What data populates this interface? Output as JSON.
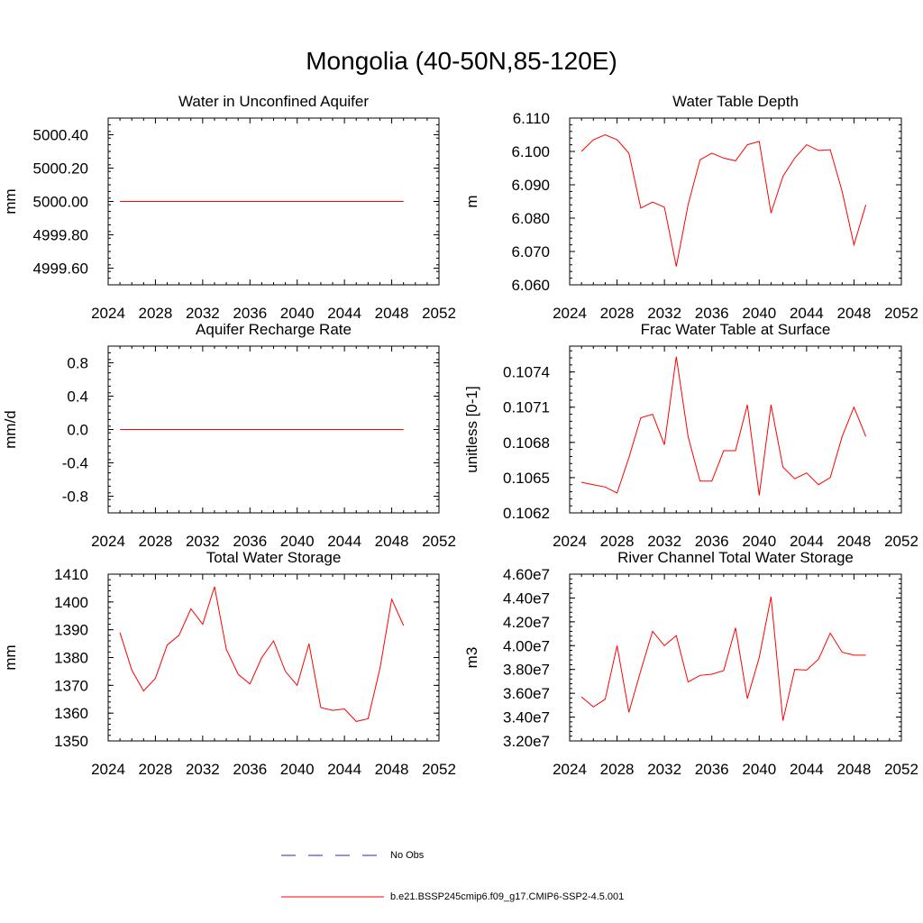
{
  "figure": {
    "title": "Mongolia (40-50N,85-120E)"
  },
  "legend": {
    "entries": [
      {
        "label": "No Obs",
        "color": "#2a2aa8",
        "style": "dashed"
      },
      {
        "label": "b.e21.BSSP245cmip6.f09_g17.CMIP6-SSP2-4.5.001",
        "color": "#ff0000",
        "style": "solid"
      }
    ]
  },
  "chart_data": [
    {
      "type": "line",
      "title": "Water in Unconfined Aquifer",
      "ylabel": "mm",
      "xlim": [
        2024,
        2052
      ],
      "xticks": [
        2024,
        2028,
        2032,
        2036,
        2040,
        2044,
        2048,
        2052
      ],
      "ylim": [
        4999.5,
        5000.5
      ],
      "yticks": [
        4999.6,
        4999.8,
        5000.0,
        5000.2,
        5000.4
      ],
      "ytick_labels": [
        "4999.60",
        "4999.80",
        "5000.00",
        "5000.20",
        "5000.40"
      ],
      "x": [
        2025,
        2026,
        2027,
        2028,
        2029,
        2030,
        2031,
        2032,
        2033,
        2034,
        2035,
        2036,
        2037,
        2038,
        2039,
        2040,
        2041,
        2042,
        2043,
        2044,
        2045,
        2046,
        2047,
        2048,
        2049
      ],
      "series": [
        {
          "color": "#ff0000",
          "values": [
            5000,
            5000,
            5000,
            5000,
            5000,
            5000,
            5000,
            5000,
            5000,
            5000,
            5000,
            5000,
            5000,
            5000,
            5000,
            5000,
            5000,
            5000,
            5000,
            5000,
            5000,
            5000,
            5000,
            5000,
            5000
          ]
        }
      ]
    },
    {
      "type": "line",
      "title": "Water Table Depth",
      "ylabel": "m",
      "xlim": [
        2024,
        2052
      ],
      "xticks": [
        2024,
        2028,
        2032,
        2036,
        2040,
        2044,
        2048,
        2052
      ],
      "ylim": [
        6.06,
        6.11
      ],
      "yticks": [
        6.06,
        6.07,
        6.08,
        6.09,
        6.1,
        6.11
      ],
      "ytick_labels": [
        "6.060",
        "6.070",
        "6.080",
        "6.090",
        "6.100",
        "6.110"
      ],
      "x": [
        2025,
        2026,
        2027,
        2028,
        2029,
        2030,
        2031,
        2032,
        2033,
        2034,
        2035,
        2036,
        2037,
        2038,
        2039,
        2040,
        2041,
        2042,
        2043,
        2044,
        2045,
        2046,
        2047,
        2048,
        2049
      ],
      "series": [
        {
          "color": "#ff0000",
          "values": [
            6.1,
            6.1035,
            6.105,
            6.1035,
            6.0995,
            6.083,
            6.0848,
            6.0833,
            6.0655,
            6.084,
            6.0975,
            6.0995,
            6.098,
            6.0972,
            6.102,
            6.103,
            6.0815,
            6.0925,
            6.098,
            6.102,
            6.1003,
            6.1005,
            6.088,
            6.072,
            6.084
          ]
        }
      ]
    },
    {
      "type": "line",
      "title": "Aquifer Recharge Rate",
      "ylabel": "mm/d",
      "xlim": [
        2024,
        2052
      ],
      "xticks": [
        2024,
        2028,
        2032,
        2036,
        2040,
        2044,
        2048,
        2052
      ],
      "ylim": [
        -1.0,
        1.0
      ],
      "yticks": [
        -0.8,
        -0.4,
        0.0,
        0.4,
        0.8
      ],
      "ytick_labels": [
        "-0.8",
        "-0.4",
        "0.0",
        "0.4",
        "0.8"
      ],
      "x": [
        2025,
        2026,
        2027,
        2028,
        2029,
        2030,
        2031,
        2032,
        2033,
        2034,
        2035,
        2036,
        2037,
        2038,
        2039,
        2040,
        2041,
        2042,
        2043,
        2044,
        2045,
        2046,
        2047,
        2048,
        2049
      ],
      "series": [
        {
          "color": "#ff0000",
          "values": [
            0,
            0,
            0,
            0,
            0,
            0,
            0,
            0,
            0,
            0,
            0,
            0,
            0,
            0,
            0,
            0,
            0,
            0,
            0,
            0,
            0,
            0,
            0,
            0,
            0
          ]
        }
      ]
    },
    {
      "type": "line",
      "title": "Frac Water Table at Surface",
      "ylabel": "unitless [0-1]",
      "xlim": [
        2024,
        2052
      ],
      "xticks": [
        2024,
        2028,
        2032,
        2036,
        2040,
        2044,
        2048,
        2052
      ],
      "ylim": [
        0.1062,
        0.10762
      ],
      "yticks": [
        0.1062,
        0.1065,
        0.1068,
        0.1071,
        0.1074
      ],
      "ytick_labels": [
        "0.1062",
        "0.1065",
        "0.1068",
        "0.1071",
        "0.1074"
      ],
      "x": [
        2025,
        2026,
        2027,
        2028,
        2029,
        2030,
        2031,
        2032,
        2033,
        2034,
        2035,
        2036,
        2037,
        2038,
        2039,
        2040,
        2041,
        2042,
        2043,
        2044,
        2045,
        2046,
        2047,
        2048,
        2049
      ],
      "series": [
        {
          "color": "#ff0000",
          "values": [
            0.10646,
            0.10644,
            0.10642,
            0.10637,
            0.10667,
            0.10701,
            0.10704,
            0.10678,
            0.10753,
            0.10685,
            0.10647,
            0.10647,
            0.10673,
            0.10673,
            0.10712,
            0.10635,
            0.10712,
            0.10659,
            0.10649,
            0.10654,
            0.10644,
            0.1065,
            0.10685,
            0.1071,
            0.10685
          ]
        }
      ]
    },
    {
      "type": "line",
      "title": "Total Water Storage",
      "ylabel": "mm",
      "xlim": [
        2024,
        2052
      ],
      "xticks": [
        2024,
        2028,
        2032,
        2036,
        2040,
        2044,
        2048,
        2052
      ],
      "ylim": [
        1350,
        1410
      ],
      "yticks": [
        1350,
        1360,
        1370,
        1380,
        1390,
        1400,
        1410
      ],
      "ytick_labels": [
        "1350",
        "1360",
        "1370",
        "1380",
        "1390",
        "1400",
        "1410"
      ],
      "x": [
        2025,
        2026,
        2027,
        2028,
        2029,
        2030,
        2031,
        2032,
        2033,
        2034,
        2035,
        2036,
        2037,
        2038,
        2039,
        2040,
        2041,
        2042,
        2043,
        2044,
        2045,
        2046,
        2047,
        2048,
        2049
      ],
      "series": [
        {
          "color": "#ff0000",
          "values": [
            1389,
            1375.5,
            1368,
            1372.5,
            1384.5,
            1388,
            1397.5,
            1392,
            1405.5,
            1383,
            1374,
            1370.5,
            1380,
            1386,
            1375,
            1370,
            1385,
            1362,
            1361,
            1361.5,
            1357,
            1358,
            1376,
            1401,
            1391.5
          ]
        }
      ]
    },
    {
      "type": "line",
      "title": "River Channel Total Water Storage",
      "ylabel": "m3",
      "xlim": [
        2024,
        2052
      ],
      "xticks": [
        2024,
        2028,
        2032,
        2036,
        2040,
        2044,
        2048,
        2052
      ],
      "ylim": [
        32000000,
        46000000
      ],
      "yticks": [
        32000000,
        34000000,
        36000000,
        38000000,
        40000000,
        42000000,
        44000000,
        46000000
      ],
      "ytick_labels": [
        "3.20e7",
        "3.40e7",
        "3.60e7",
        "3.80e7",
        "4.00e7",
        "4.20e7",
        "4.40e7",
        "4.60e7"
      ],
      "x": [
        2025,
        2026,
        2027,
        2028,
        2029,
        2030,
        2031,
        2032,
        2033,
        2034,
        2035,
        2036,
        2037,
        2038,
        2039,
        2040,
        2041,
        2042,
        2043,
        2044,
        2045,
        2046,
        2047,
        2048,
        2049
      ],
      "series": [
        {
          "color": "#ff0000",
          "values": [
            35700000,
            34850000,
            35500000,
            40000000,
            34400000,
            37900000,
            41200000,
            40000000,
            40850000,
            36950000,
            37500000,
            37600000,
            37900000,
            41500000,
            35550000,
            39000000,
            44100000,
            33700000,
            38000000,
            37950000,
            38850000,
            41050000,
            39450000,
            39200000,
            39200000
          ]
        }
      ]
    }
  ]
}
